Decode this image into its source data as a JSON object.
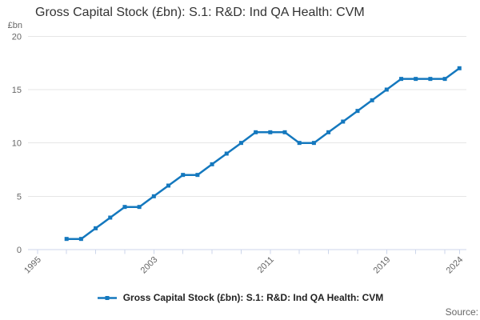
{
  "title": "Gross Capital Stock (£bn): S.1: R&D: Ind QA Health: CVM",
  "legend": {
    "label": "Gross Capital Stock (£bn): S.1: R&D: Ind QA Health: CVM"
  },
  "source_label": "Source:",
  "colors": {
    "line": "#1478be",
    "grid": "#e6e6e6",
    "axis": "#ccd6eb",
    "title_text": "#333333",
    "tick_text": "#666666",
    "legend_text": "#222222",
    "source_text": "#666666",
    "background": "#ffffff"
  },
  "chart_data": {
    "type": "line",
    "title": "Gross Capital Stock (£bn): S.1: R&D: Ind QA Health: CVM",
    "xlabel": "",
    "ylabel": "£bn",
    "y_unit_label": "£bn",
    "series": [
      {
        "name": "Gross Capital Stock (£bn): S.1: R&D: Ind QA Health: CVM",
        "x": [
          1997,
          1998,
          1999,
          2000,
          2001,
          2002,
          2003,
          2004,
          2005,
          2006,
          2007,
          2008,
          2009,
          2010,
          2011,
          2012,
          2013,
          2014,
          2015,
          2016,
          2017,
          2018,
          2019,
          2020,
          2021,
          2022,
          2023,
          2024
        ],
        "values": [
          1,
          1,
          2,
          3,
          4,
          4,
          5,
          6,
          7,
          7,
          8,
          9,
          10,
          11,
          11,
          11,
          10,
          10,
          11,
          12,
          13,
          14,
          15,
          16,
          16,
          16,
          16,
          17
        ]
      }
    ],
    "ylim": [
      0,
      20
    ],
    "yticks": [
      0,
      5,
      10,
      15,
      20
    ],
    "x_axis_tick_years": [
      1995,
      1997,
      1999,
      2001,
      2003,
      2005,
      2007,
      2009,
      2011,
      2013,
      2015,
      2017,
      2019,
      2021,
      2023,
      2024
    ],
    "x_labeled_years": [
      1995,
      2003,
      2011,
      2019,
      2024
    ],
    "xlim": [
      1994.35,
      2024.48
    ],
    "grid": "horizontal",
    "legend_position": "bottom",
    "marker": "square"
  }
}
